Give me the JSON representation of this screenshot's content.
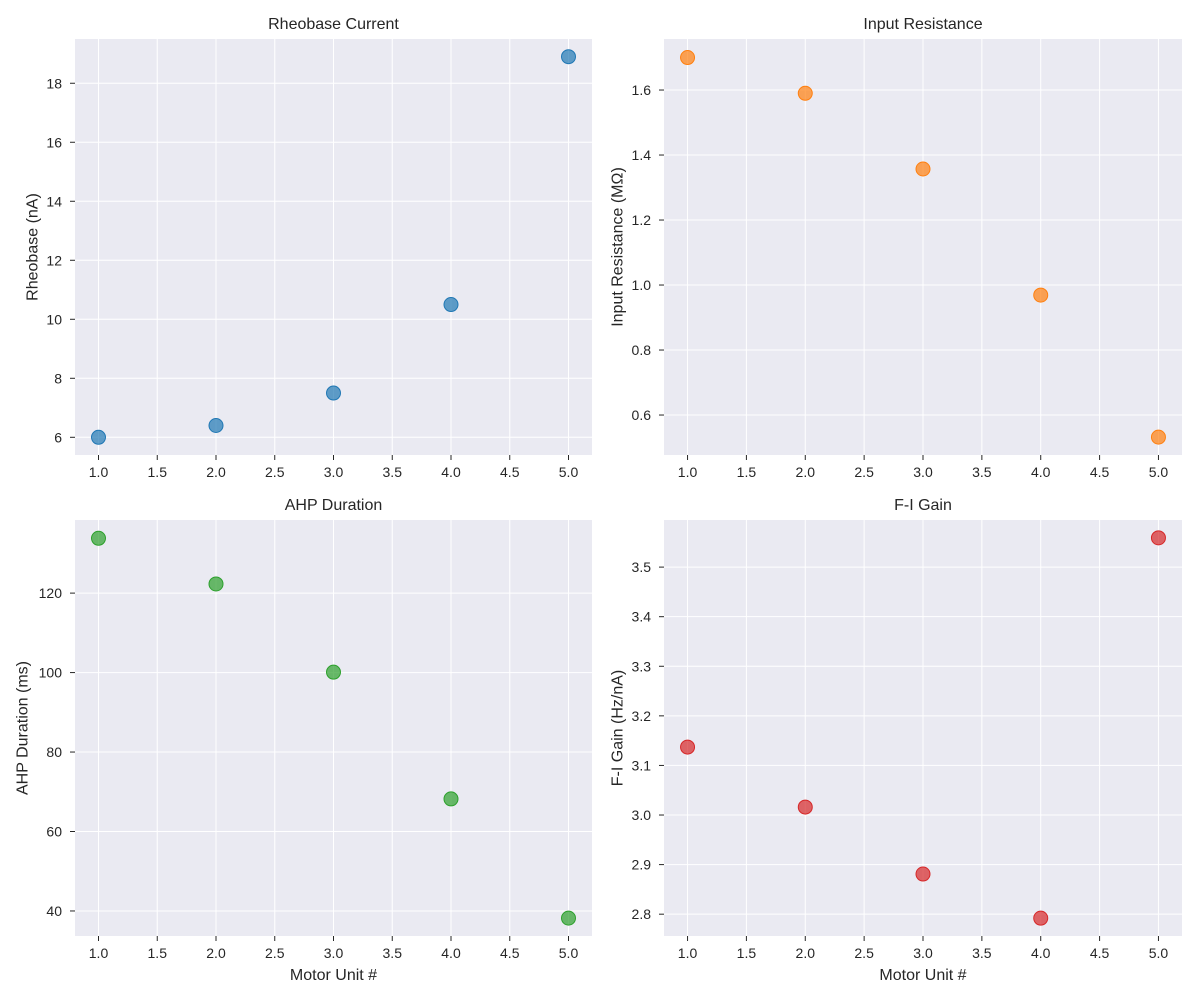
{
  "chart_data": [
    {
      "type": "scatter",
      "title": "Rheobase Current",
      "xlabel": "",
      "ylabel": "Rheobase (nA)",
      "x": [
        1,
        2,
        3,
        4,
        5
      ],
      "y": [
        6.0,
        6.4,
        7.5,
        10.5,
        18.9
      ],
      "xlim": [
        0.8,
        5.2
      ],
      "ylim": [
        5.4,
        19.5
      ],
      "xticks": [
        1.0,
        1.5,
        2.0,
        2.5,
        3.0,
        3.5,
        4.0,
        4.5,
        5.0
      ],
      "yticks": [
        6,
        8,
        10,
        12,
        14,
        16,
        18
      ],
      "ytick_decimals": 0,
      "color": "#1f77b4",
      "grid": true
    },
    {
      "type": "scatter",
      "title": "Input Resistance",
      "xlabel": "",
      "ylabel": "Input Resistance (MΩ)",
      "x": [
        1,
        2,
        3,
        4,
        5
      ],
      "y": [
        1.7,
        1.59,
        1.357,
        0.969,
        0.532
      ],
      "xlim": [
        0.8,
        5.2
      ],
      "ylim": [
        0.477,
        1.757
      ],
      "xticks": [
        1.0,
        1.5,
        2.0,
        2.5,
        3.0,
        3.5,
        4.0,
        4.5,
        5.0
      ],
      "yticks": [
        0.6,
        0.8,
        1.0,
        1.2,
        1.4,
        1.6
      ],
      "ytick_decimals": 1,
      "color": "#ff7f0e",
      "grid": true
    },
    {
      "type": "scatter",
      "title": "AHP Duration",
      "xlabel": "Motor Unit #",
      "ylabel": "AHP Duration (ms)",
      "x": [
        1,
        2,
        3,
        4,
        5
      ],
      "y": [
        133.8,
        122.3,
        100.1,
        68.2,
        38.2
      ],
      "xlim": [
        0.8,
        5.2
      ],
      "ylim": [
        33.7,
        138.4
      ],
      "xticks": [
        1.0,
        1.5,
        2.0,
        2.5,
        3.0,
        3.5,
        4.0,
        4.5,
        5.0
      ],
      "yticks": [
        40,
        60,
        80,
        100,
        120
      ],
      "ytick_decimals": 0,
      "color": "#2ca02c",
      "grid": true
    },
    {
      "type": "scatter",
      "title": "F-I Gain",
      "xlabel": "Motor Unit #",
      "ylabel": "F-I Gain (Hz/nA)",
      "x": [
        1,
        2,
        3,
        4,
        5
      ],
      "y": [
        3.137,
        3.016,
        2.881,
        2.792,
        3.559
      ],
      "xlim": [
        0.8,
        5.2
      ],
      "ylim": [
        2.756,
        3.595
      ],
      "xticks": [
        1.0,
        1.5,
        2.0,
        2.5,
        3.0,
        3.5,
        4.0,
        4.5,
        5.0
      ],
      "yticks": [
        2.8,
        2.9,
        3.0,
        3.1,
        3.2,
        3.3,
        3.4,
        3.5
      ],
      "ytick_decimals": 1,
      "color": "#d62728",
      "grid": true
    }
  ]
}
